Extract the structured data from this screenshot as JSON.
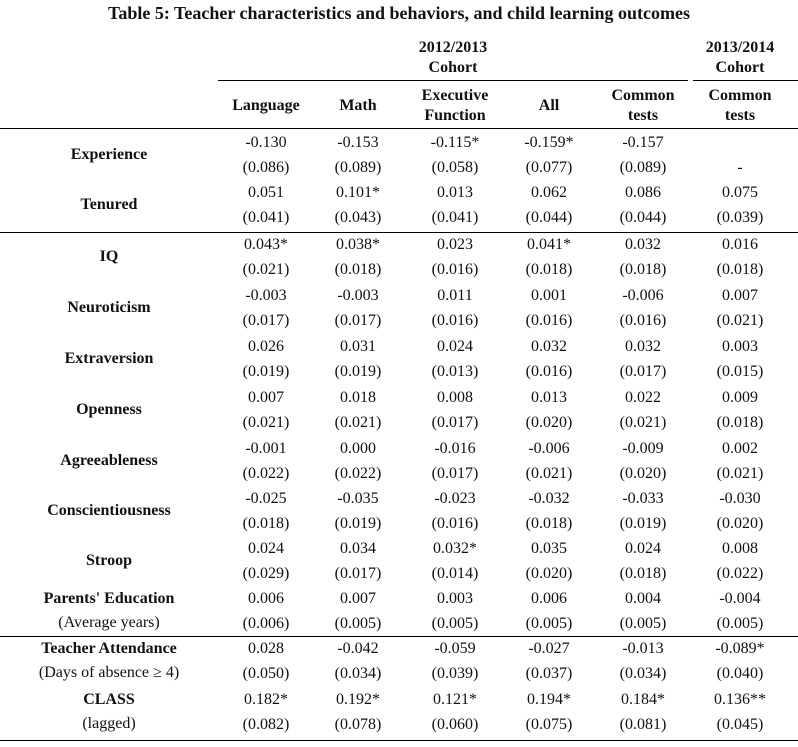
{
  "title": "Table 5: Teacher characteristics and behaviors, and child learning outcomes",
  "cohort_headers": [
    {
      "label": "2012/2013\nCohort"
    },
    {
      "label": "2013/2014\nCohort"
    }
  ],
  "columns": [
    "Language",
    "Math",
    "Executive Function",
    "All",
    "Common tests",
    "Common tests"
  ],
  "rows": [
    {
      "label": "Experience",
      "sublabel": "",
      "coef": [
        "-0.130",
        "-0.153",
        "-0.115*",
        "-0.159*",
        "-0.157",
        ""
      ],
      "se": [
        "(0.086)",
        "(0.089)",
        "(0.058)",
        "(0.077)",
        "(0.089)",
        "-"
      ]
    },
    {
      "label": "Tenured",
      "sublabel": "",
      "coef": [
        "0.051",
        "0.101*",
        "0.013",
        "0.062",
        "0.086",
        "0.075"
      ],
      "se": [
        "(0.041)",
        "(0.043)",
        "(0.041)",
        "(0.044)",
        "(0.044)",
        "(0.039)"
      ]
    },
    {
      "label": "IQ",
      "sublabel": "",
      "coef": [
        "0.043*",
        "0.038*",
        "0.023",
        "0.041*",
        "0.032",
        "0.016"
      ],
      "se": [
        "(0.021)",
        "(0.018)",
        "(0.016)",
        "(0.018)",
        "(0.018)",
        "(0.018)"
      ]
    },
    {
      "label": "Neuroticism",
      "sublabel": "",
      "coef": [
        "-0.003",
        "-0.003",
        "0.011",
        "0.001",
        "-0.006",
        "0.007"
      ],
      "se": [
        "(0.017)",
        "(0.017)",
        "(0.016)",
        "(0.016)",
        "(0.016)",
        "(0.021)"
      ]
    },
    {
      "label": "Extraversion",
      "sublabel": "",
      "coef": [
        "0.026",
        "0.031",
        "0.024",
        "0.032",
        "0.032",
        "0.003"
      ],
      "se": [
        "(0.019)",
        "(0.019)",
        "(0.013)",
        "(0.016)",
        "(0.017)",
        "(0.015)"
      ]
    },
    {
      "label": "Openness",
      "sublabel": "",
      "coef": [
        "0.007",
        "0.018",
        "0.008",
        "0.013",
        "0.022",
        "0.009"
      ],
      "se": [
        "(0.021)",
        "(0.021)",
        "(0.017)",
        "(0.020)",
        "(0.021)",
        "(0.018)"
      ]
    },
    {
      "label": "Agreeableness",
      "sublabel": "",
      "coef": [
        "-0.001",
        "0.000",
        "-0.016",
        "-0.006",
        "-0.009",
        "0.002"
      ],
      "se": [
        "(0.022)",
        "(0.022)",
        "(0.017)",
        "(0.021)",
        "(0.020)",
        "(0.021)"
      ]
    },
    {
      "label": "Conscientiousness",
      "sublabel": "",
      "coef": [
        "-0.025",
        "-0.035",
        "-0.023",
        "-0.032",
        "-0.033",
        "-0.030"
      ],
      "se": [
        "(0.018)",
        "(0.019)",
        "(0.016)",
        "(0.018)",
        "(0.019)",
        "(0.020)"
      ]
    },
    {
      "label": "Stroop",
      "sublabel": "",
      "coef": [
        "0.024",
        "0.034",
        "0.032*",
        "0.035",
        "0.024",
        "0.008"
      ],
      "se": [
        "(0.029)",
        "(0.017)",
        "(0.014)",
        "(0.020)",
        "(0.018)",
        "(0.022)"
      ]
    },
    {
      "label": "Parents' Education",
      "sublabel": "(Average years)",
      "coef": [
        "0.006",
        "0.007",
        "0.003",
        "0.006",
        "0.004",
        "-0.004"
      ],
      "se": [
        "(0.006)",
        "(0.005)",
        "(0.005)",
        "(0.005)",
        "(0.005)",
        "(0.005)"
      ]
    },
    {
      "label": "Teacher Attendance",
      "sublabel": "(Days of absence ≥ 4)",
      "coef": [
        "0.028",
        "-0.042",
        "-0.059",
        "-0.027",
        "-0.013",
        "-0.089*"
      ],
      "se": [
        "(0.050)",
        "(0.034)",
        "(0.039)",
        "(0.037)",
        "(0.034)",
        "(0.040)"
      ]
    },
    {
      "label": "CLASS",
      "sublabel": "(lagged)",
      "coef": [
        "0.182*",
        "0.192*",
        "0.121*",
        "0.194*",
        "0.184*",
        "0.136**"
      ],
      "se": [
        "(0.082)",
        "(0.078)",
        "(0.060)",
        "(0.075)",
        "(0.081)",
        "(0.045)"
      ]
    }
  ]
}
